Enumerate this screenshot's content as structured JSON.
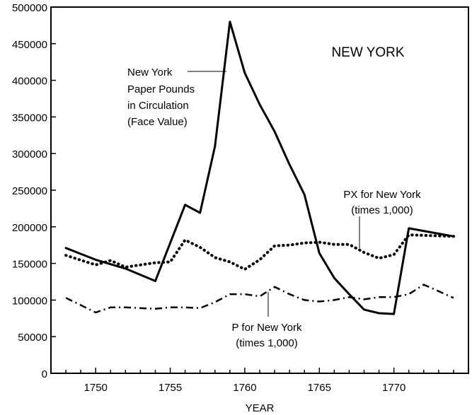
{
  "chart_data": {
    "type": "line",
    "title": "NEW YORK",
    "xlabel": "YEAR",
    "ylabel": "",
    "xlim": [
      1747,
      1775
    ],
    "ylim": [
      0,
      500000
    ],
    "x_ticks": [
      1750,
      1755,
      1760,
      1765,
      1770
    ],
    "y_ticks": [
      0,
      50000,
      100000,
      150000,
      200000,
      250000,
      300000,
      350000,
      400000,
      450000,
      500000
    ],
    "grid": false,
    "series": [
      {
        "name": "New York Paper Pounds in Circulation (Face Value)",
        "style": "solid",
        "x": [
          1748,
          1750,
          1752,
          1754,
          1756,
          1757,
          1758,
          1759,
          1760,
          1761,
          1762,
          1763,
          1764,
          1765,
          1766,
          1767,
          1768,
          1769,
          1770,
          1771,
          1774
        ],
        "values": [
          171000,
          155000,
          143000,
          126000,
          230000,
          219000,
          310000,
          480000,
          410000,
          367000,
          330000,
          285000,
          244000,
          164000,
          130000,
          108000,
          87000,
          82000,
          81000,
          198000,
          187000
        ]
      },
      {
        "name": "PX for New York (times 1,000)",
        "style": "dotted",
        "x": [
          1748,
          1750,
          1751,
          1752,
          1754,
          1755,
          1756,
          1757,
          1758,
          1759,
          1760,
          1761,
          1762,
          1763,
          1764,
          1765,
          1766,
          1767,
          1768,
          1769,
          1770,
          1771,
          1774
        ],
        "values": [
          161000,
          148000,
          154000,
          145000,
          151000,
          152000,
          182000,
          172000,
          158000,
          152000,
          142000,
          155000,
          174000,
          175000,
          178000,
          179000,
          176000,
          176000,
          165000,
          157000,
          162000,
          189000,
          187000
        ]
      },
      {
        "name": "P for New York (times 1,000)",
        "style": "dashdot",
        "x": [
          1748,
          1750,
          1751,
          1752,
          1754,
          1755,
          1756,
          1757,
          1758,
          1759,
          1760,
          1761,
          1762,
          1763,
          1764,
          1765,
          1766,
          1767,
          1768,
          1769,
          1770,
          1771,
          1772,
          1774
        ],
        "values": [
          103000,
          83000,
          90000,
          90000,
          88000,
          90000,
          90000,
          89000,
          97000,
          108000,
          108000,
          105000,
          118000,
          108000,
          100000,
          98000,
          100000,
          104000,
          101000,
          104000,
          104000,
          108000,
          121000,
          103000
        ]
      }
    ],
    "annotations": [
      {
        "lines": [
          "New York",
          "Paper Pounds",
          "in Circulation",
          "(Face Value)"
        ]
      },
      {
        "lines": [
          "PX for New York",
          "(times 1,000)"
        ]
      },
      {
        "lines": [
          "P for New York",
          "(times 1,000)"
        ]
      }
    ]
  }
}
